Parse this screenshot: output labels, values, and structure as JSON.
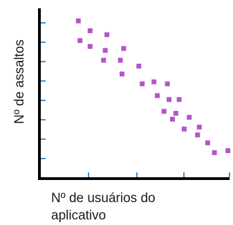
{
  "chart_data": {
    "type": "scatter",
    "title": "",
    "xlabel_lines": [
      "Nº de usuários do",
      "aplicativo"
    ],
    "ylabel": "Nº de assaltos",
    "xlim": [
      0,
      10
    ],
    "ylim": [
      0,
      8
    ],
    "x_ticks": [
      0,
      2.5,
      5,
      7.5,
      10
    ],
    "y_ticks": [
      1,
      2,
      3,
      4,
      5,
      6,
      7,
      8
    ],
    "tick_labels_shown": false,
    "grid": false,
    "point_color": "#b455c8",
    "axis_color": "#000000",
    "tick_color": "#3a8fd6",
    "points": [
      {
        "x": 1.7,
        "y": 7.0
      },
      {
        "x": 1.8,
        "y": 6.0
      },
      {
        "x": 2.4,
        "y": 6.5
      },
      {
        "x": 2.4,
        "y": 5.7
      },
      {
        "x": 3.2,
        "y": 5.0
      },
      {
        "x": 3.3,
        "y": 5.5
      },
      {
        "x": 3.4,
        "y": 6.3
      },
      {
        "x": 4.2,
        "y": 5.0
      },
      {
        "x": 4.3,
        "y": 4.3
      },
      {
        "x": 4.4,
        "y": 5.6
      },
      {
        "x": 5.3,
        "y": 4.7
      },
      {
        "x": 5.5,
        "y": 3.8
      },
      {
        "x": 6.2,
        "y": 3.9
      },
      {
        "x": 6.4,
        "y": 3.2
      },
      {
        "x": 6.8,
        "y": 2.4
      },
      {
        "x": 7.0,
        "y": 3.8
      },
      {
        "x": 7.1,
        "y": 3.0
      },
      {
        "x": 7.3,
        "y": 2.0
      },
      {
        "x": 7.5,
        "y": 2.3
      },
      {
        "x": 7.7,
        "y": 3.0
      },
      {
        "x": 8.0,
        "y": 1.5
      },
      {
        "x": 8.3,
        "y": 2.1
      },
      {
        "x": 8.8,
        "y": 1.2
      },
      {
        "x": 8.9,
        "y": 1.6
      },
      {
        "x": 9.4,
        "y": 0.8
      },
      {
        "x": 9.8,
        "y": 0.3
      },
      {
        "x": 10.6,
        "y": 0.4
      }
    ]
  }
}
